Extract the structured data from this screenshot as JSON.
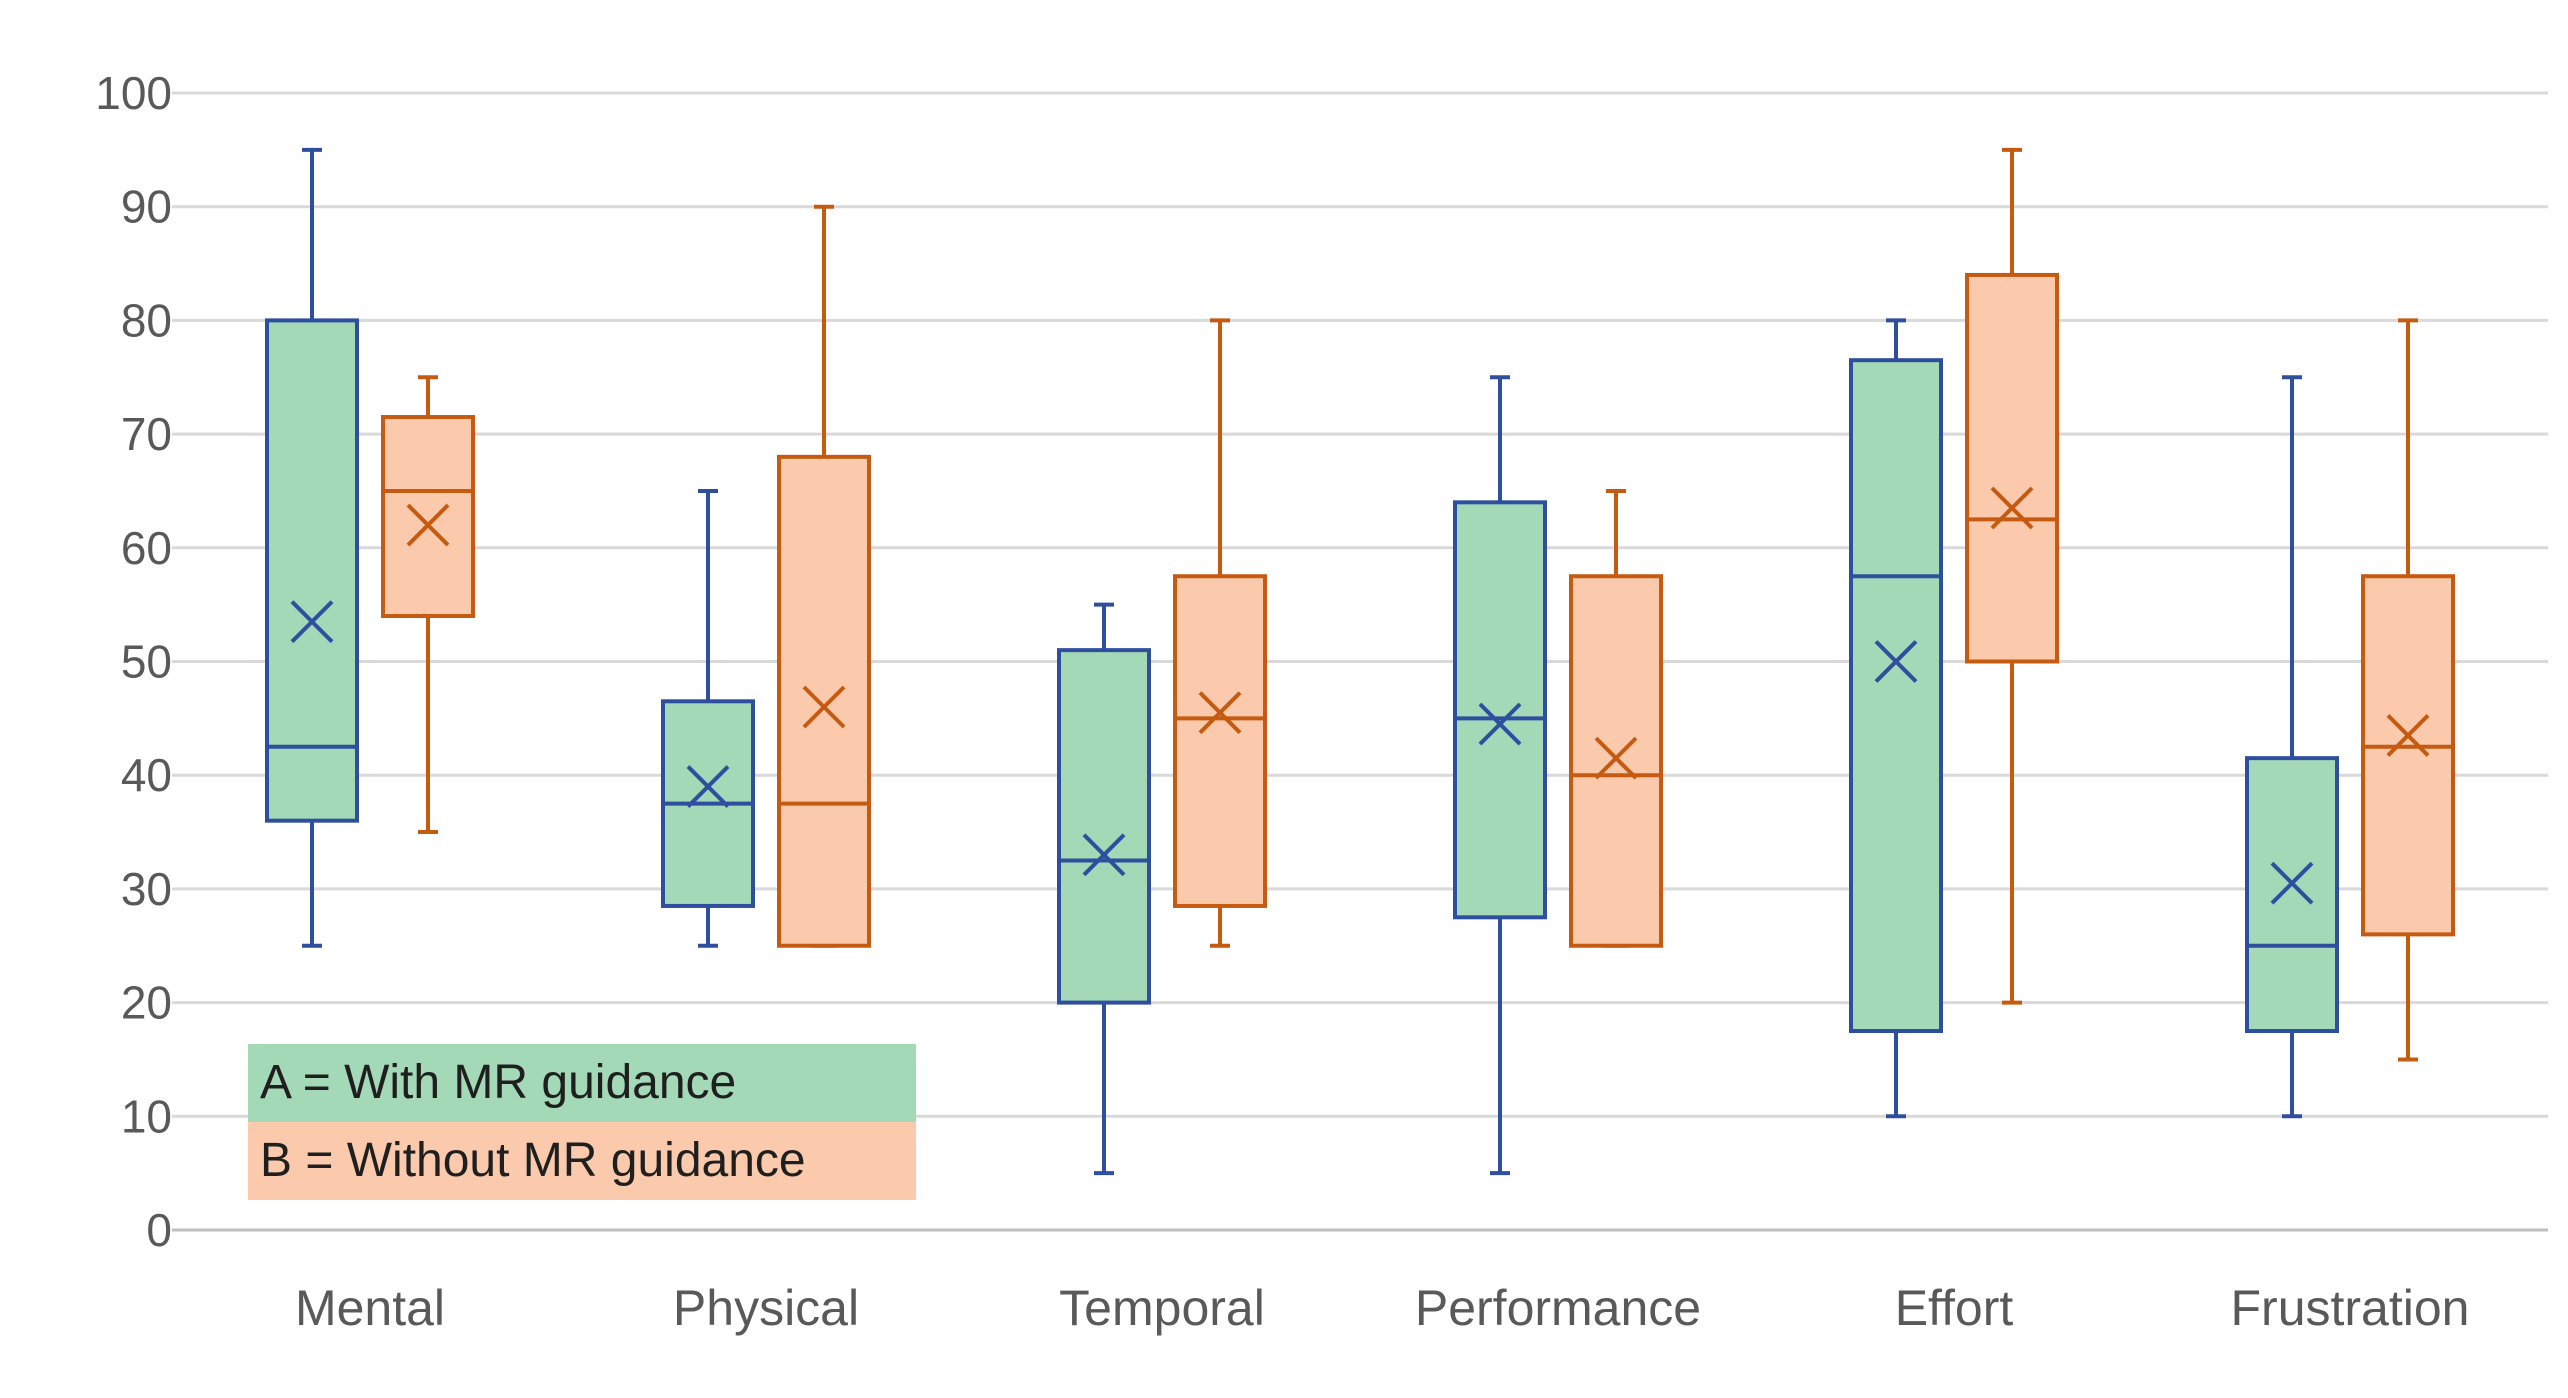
{
  "chart_data": {
    "type": "box",
    "title": "",
    "xlabel": "",
    "ylabel": "",
    "ylim": [
      0,
      100
    ],
    "yticks": [
      0,
      10,
      20,
      30,
      40,
      50,
      60,
      70,
      80,
      90,
      100
    ],
    "grid": true,
    "categories": [
      "Mental",
      "Physical",
      "Temporal",
      "Performance",
      "Effort",
      "Frustration"
    ],
    "series": [
      {
        "name": "A = With MR guidance",
        "fill": "#A3D9B6",
        "stroke": "#2E4E9E",
        "boxes": [
          {
            "min": 25,
            "q1": 36,
            "median": 42.5,
            "q3": 80,
            "max": 95,
            "mean": 53.5
          },
          {
            "min": 25,
            "q1": 28.5,
            "median": 37.5,
            "q3": 46.5,
            "max": 65,
            "mean": 39
          },
          {
            "min": 5,
            "q1": 20,
            "median": 32.5,
            "q3": 51,
            "max": 55,
            "mean": 33
          },
          {
            "min": 5,
            "q1": 27.5,
            "median": 45,
            "q3": 64,
            "max": 75,
            "mean": 44.5
          },
          {
            "min": 10,
            "q1": 17.5,
            "median": 57.5,
            "q3": 76.5,
            "max": 80,
            "mean": 50
          },
          {
            "min": 10,
            "q1": 17.5,
            "median": 25,
            "q3": 41.5,
            "max": 75,
            "mean": 30.5
          }
        ]
      },
      {
        "name": "B = Without MR guidance",
        "fill": "#FBCAAC",
        "stroke": "#C55A11",
        "boxes": [
          {
            "min": 35,
            "q1": 54,
            "median": 65,
            "q3": 71.5,
            "max": 75,
            "mean": 62
          },
          {
            "min": 25,
            "q1": 25,
            "median": 37.5,
            "q3": 68,
            "max": 90,
            "mean": 46
          },
          {
            "min": 25,
            "q1": 28.5,
            "median": 45,
            "q3": 57.5,
            "max": 80,
            "mean": 45.5
          },
          {
            "min": 25,
            "q1": 25,
            "median": 40,
            "q3": 57.5,
            "max": 65,
            "mean": 41.5
          },
          {
            "min": 20,
            "q1": 50,
            "median": 62.5,
            "q3": 84,
            "max": 95,
            "mean": 63.5
          },
          {
            "min": 15,
            "q1": 26,
            "median": 42.5,
            "q3": 57.5,
            "max": 80,
            "mean": 43.5
          }
        ]
      }
    ],
    "legend": {
      "placement": "bottom-left",
      "entries": [
        "A = With MR guidance",
        "B = Without MR guidance"
      ]
    }
  }
}
